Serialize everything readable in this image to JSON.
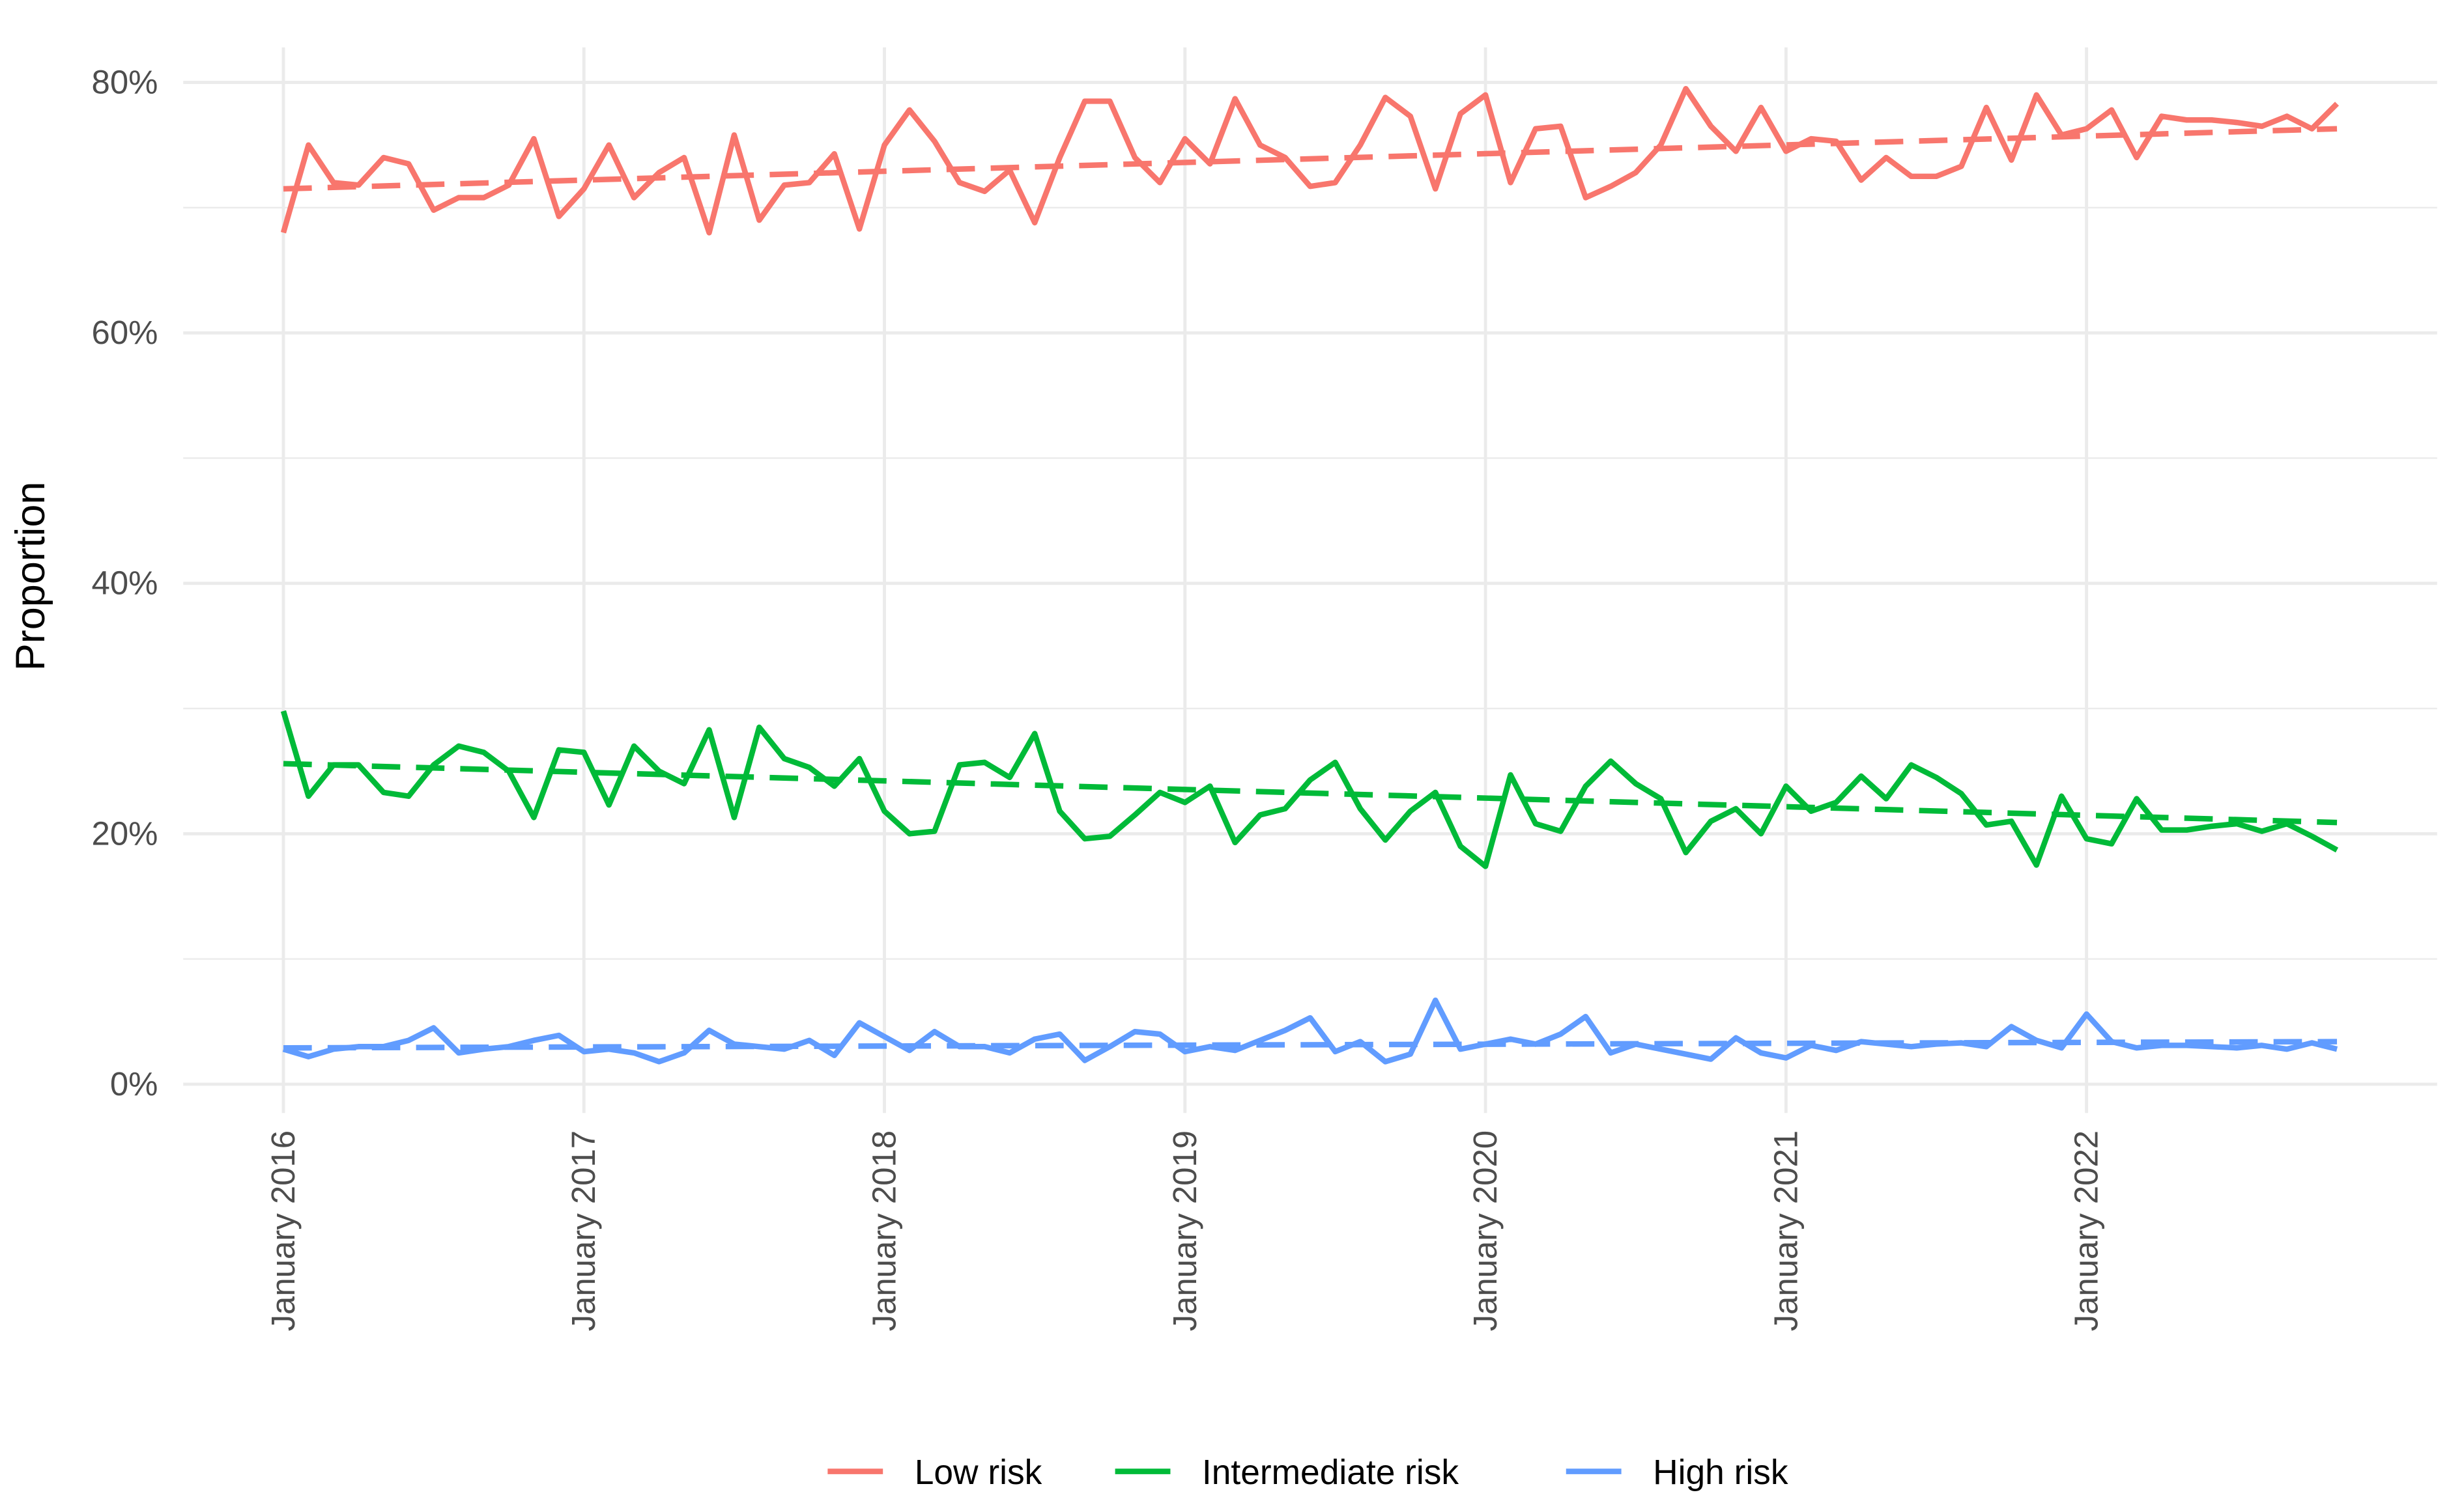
{
  "chart_data": {
    "type": "line",
    "y_label": "Proportion",
    "x": [
      "2016-01",
      "2016-02",
      "2016-03",
      "2016-04",
      "2016-05",
      "2016-06",
      "2016-07",
      "2016-08",
      "2016-09",
      "2016-10",
      "2016-11",
      "2016-12",
      "2017-01",
      "2017-02",
      "2017-03",
      "2017-04",
      "2017-05",
      "2017-06",
      "2017-07",
      "2017-08",
      "2017-09",
      "2017-10",
      "2017-11",
      "2017-12",
      "2018-01",
      "2018-02",
      "2018-03",
      "2018-04",
      "2018-05",
      "2018-06",
      "2018-07",
      "2018-08",
      "2018-09",
      "2018-10",
      "2018-11",
      "2018-12",
      "2019-01",
      "2019-02",
      "2019-03",
      "2019-04",
      "2019-05",
      "2019-06",
      "2019-07",
      "2019-08",
      "2019-09",
      "2019-10",
      "2019-11",
      "2019-12",
      "2020-01",
      "2020-02",
      "2020-03",
      "2020-04",
      "2020-05",
      "2020-06",
      "2020-07",
      "2020-08",
      "2020-09",
      "2020-10",
      "2020-11",
      "2020-12",
      "2021-01",
      "2021-02",
      "2021-03",
      "2021-04",
      "2021-05",
      "2021-06",
      "2021-07",
      "2021-08",
      "2021-09",
      "2021-10",
      "2021-11",
      "2021-12",
      "2022-01",
      "2022-02",
      "2022-03",
      "2022-04",
      "2022-05",
      "2022-06",
      "2022-07",
      "2022-08",
      "2022-09",
      "2022-10",
      "2022-11"
    ],
    "xlim": [
      "2015-09",
      "2023-03"
    ],
    "xticks": [
      {
        "value": "2016-01",
        "label": "January 2016"
      },
      {
        "value": "2017-01",
        "label": "January 2017"
      },
      {
        "value": "2018-01",
        "label": "January 2018"
      },
      {
        "value": "2019-01",
        "label": "January 2019"
      },
      {
        "value": "2020-01",
        "label": "January 2020"
      },
      {
        "value": "2021-01",
        "label": "January 2021"
      },
      {
        "value": "2022-01",
        "label": "January 2022"
      }
    ],
    "ylim": [
      -2.3,
      82.8
    ],
    "yticks": [
      {
        "value": 0,
        "label": "0%"
      },
      {
        "value": 20,
        "label": "20%"
      },
      {
        "value": 40,
        "label": "40%"
      },
      {
        "value": 60,
        "label": "60%"
      },
      {
        "value": 80,
        "label": "80%"
      }
    ],
    "minor_yticks": [
      10,
      30,
      50,
      70
    ],
    "grid": true,
    "legend": "bottom",
    "series": [
      {
        "name": "Low risk",
        "color": "#F8766D",
        "values": [
          68,
          75,
          72,
          71.8,
          74,
          73.5,
          69.8,
          70.8,
          70.8,
          71.8,
          75.5,
          69.3,
          71.5,
          75,
          70.8,
          72.8,
          74,
          68,
          75.8,
          69,
          71.8,
          72,
          74.3,
          68.3,
          75,
          77.8,
          75.3,
          72,
          71.3,
          73,
          68.8,
          74,
          78.5,
          78.5,
          74,
          72,
          75.5,
          73.5,
          78.7,
          75,
          74,
          71.7,
          72,
          75,
          78.8,
          77.3,
          71.5,
          77.5,
          79,
          72,
          76.3,
          76.5,
          70.8,
          71.7,
          72.8,
          75,
          79.5,
          76.5,
          74.5,
          78,
          74.5,
          75.5,
          75.3,
          72.2,
          74,
          72.5,
          72.5,
          73.3,
          78,
          73.8,
          79,
          75.8,
          76.3,
          77.8,
          74,
          77.3,
          77,
          77,
          76.8,
          76.5,
          77.3,
          76.3,
          78.3
        ],
        "trend": [
          71.5,
          76.3
        ]
      },
      {
        "name": "Intermediate risk",
        "color": "#00BA38",
        "values": [
          29.8,
          23,
          25.5,
          25.5,
          23.3,
          23,
          25.5,
          27,
          26.5,
          25,
          21.3,
          26.7,
          26.5,
          22.3,
          27,
          25,
          24,
          28.3,
          21.3,
          28.5,
          26,
          25.3,
          23.8,
          26,
          21.8,
          20,
          20.2,
          25.5,
          25.7,
          24.5,
          28,
          21.8,
          19.6,
          19.8,
          21.5,
          23.3,
          22.5,
          23.8,
          19.3,
          21.5,
          22,
          24.3,
          25.7,
          22,
          19.5,
          21.8,
          23.3,
          19,
          17.4,
          24.7,
          20.8,
          20.2,
          23.8,
          25.8,
          24,
          22.8,
          18.5,
          21,
          22,
          20,
          23.8,
          21.8,
          22.5,
          24.6,
          22.8,
          25.5,
          24.5,
          23.2,
          20.7,
          21,
          17.5,
          23,
          19.6,
          19.2,
          22.8,
          20.3,
          20.3,
          20.6,
          20.8,
          20.2,
          20.8,
          19.8,
          18.7
        ],
        "trend": [
          25.6,
          20.9
        ]
      },
      {
        "name": "High risk",
        "color": "#619CFF",
        "values": [
          2.8,
          2.2,
          2.8,
          3,
          3,
          3.5,
          4.5,
          2.5,
          2.8,
          3,
          3.5,
          3.9,
          2.6,
          2.8,
          2.5,
          1.8,
          2.5,
          4.3,
          3.2,
          3,
          2.8,
          3.5,
          2.3,
          4.9,
          3.8,
          2.7,
          4.2,
          3,
          3,
          2.5,
          3.6,
          4,
          1.9,
          3,
          4.2,
          4,
          2.6,
          3,
          2.7,
          3.5,
          4.3,
          5.3,
          2.6,
          3.4,
          1.8,
          2.4,
          6.7,
          2.8,
          3.2,
          3.6,
          3.2,
          4,
          5.4,
          2.5,
          3.2,
          2.8,
          2.4,
          2,
          3.7,
          2.5,
          2.1,
          3.1,
          2.7,
          3.4,
          3.2,
          3,
          3.2,
          3.3,
          3,
          4.6,
          3.5,
          2.9,
          5.6,
          3.4,
          2.9,
          3.1,
          3.1,
          3,
          2.9,
          3.1,
          2.8,
          3.3,
          2.8
        ],
        "trend": [
          2.9,
          3.4
        ]
      }
    ]
  }
}
